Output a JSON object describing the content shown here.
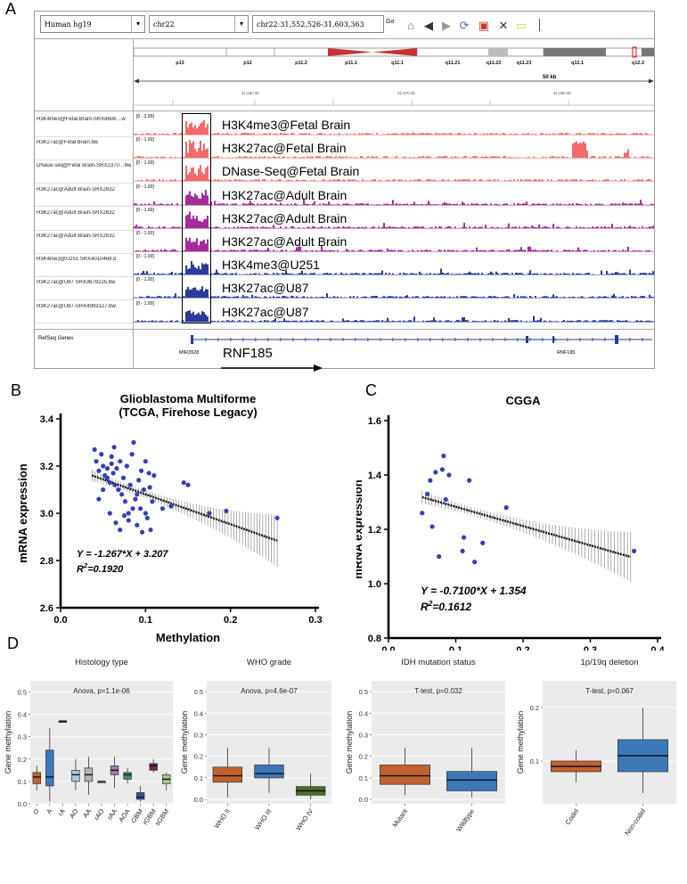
{
  "panels": {
    "a": "A",
    "b": "B",
    "c": "C",
    "d": "D"
  },
  "igv": {
    "genome": "Human hg19",
    "chromosome": "chr22",
    "locus": "chr22:31,552,526-31,603,363",
    "go": "Go",
    "bands": [
      "p13",
      "p12",
      "p11.2",
      "p11.1",
      "q11.1",
      "q11.21",
      "q11.22",
      "q11.23",
      "q12.1",
      "q12.2"
    ],
    "span": "50 kb",
    "ruler": [
      "31,560 kb",
      "31,570 kb",
      "31,580 kb"
    ],
    "tracks": [
      {
        "file": "H3K4me3@Fetal Brain-SRX8606…w",
        "label": "H3K4me3@Fetal Brain",
        "range": "[0 - 2.00]",
        "color": "#f26a6a"
      },
      {
        "file": "H3K27ac@Fetal Brain.bw",
        "label": "H3K27ac@Fetal Brain",
        "range": "[0 - 1.00]",
        "color": "#f26a6a"
      },
      {
        "file": "DNase-seq@Fetal Brain-SRX2370…bw",
        "label": "DNase-Seq@Fetal Brain",
        "range": "[0 - 1.00]",
        "color": "#f26a6a"
      },
      {
        "file": "H3K27ac@Adult Brain-SRX2632",
        "label": "H3K27ac@Adult Brain",
        "range": "[0 - 1.00]",
        "color": "#a52d9a"
      },
      {
        "file": "H3K27ac@Adult Brain-SRX2632",
        "label": "H3K27ac@Adult Brain",
        "range": "[0 - 1.00]",
        "color": "#a52d9a"
      },
      {
        "file": "H3K27ac@Adult Brain-SRX2632",
        "label": "H3K27ac@Adult Brain",
        "range": "[0 - 1.00]",
        "color": "#a52d9a"
      },
      {
        "file": "H3K4me3@U251 SRX4010468.b",
        "label": "H3K4me3@U251",
        "range": "[0 - 1.00]",
        "color": "#2b3a9c"
      },
      {
        "file": "H3K27ac@U87 SRX3678225.bw",
        "label": "H3K27ac@U87",
        "range": "[0 - 1.00]",
        "color": "#2b3a9c"
      },
      {
        "file": "H3K27ac@U87-SRX4993127.bw",
        "label": "H3K27ac@U87",
        "range": "[0 - 1.00]",
        "color": "#2b3a9c"
      }
    ],
    "refseq_label": "RefSeq Genes",
    "gene_left": "MIR3928",
    "gene_right": "RNF185",
    "gene_big": "RNF185"
  },
  "chart_data": [
    {
      "id": "B",
      "type": "scatter",
      "title": "Glioblastoma Multiforme",
      "subtitle": "(TCGA, Firehose Legacy)",
      "xlabel": "Methylation",
      "ylabel": "mRNA expression",
      "xlim": [
        0,
        0.3
      ],
      "ylim": [
        2.6,
        3.4
      ],
      "xticks": [
        "0.0",
        "0.1",
        "0.2",
        "0.3"
      ],
      "yticks": [
        "2.6",
        "2.8",
        "3.0",
        "3.2",
        "3.4"
      ],
      "equation": "Y = -1.267*X + 3.207",
      "r2_label": "R",
      "r2_value": "2",
      "r2_rest": "=0.1920",
      "fit": {
        "slope": -1.267,
        "intercept": 3.207,
        "x0": 0.037,
        "x1": 0.255
      },
      "points": [
        [
          0.04,
          3.27
        ],
        [
          0.042,
          3.22
        ],
        [
          0.045,
          3.18
        ],
        [
          0.048,
          3.25
        ],
        [
          0.05,
          3.2
        ],
        [
          0.052,
          3.16
        ],
        [
          0.055,
          3.15
        ],
        [
          0.058,
          3.13
        ],
        [
          0.06,
          3.24
        ],
        [
          0.062,
          3.17
        ],
        [
          0.064,
          3.12
        ],
        [
          0.066,
          3.19
        ],
        [
          0.068,
          3.1
        ],
        [
          0.07,
          3.22
        ],
        [
          0.072,
          3.08
        ],
        [
          0.074,
          3.15
        ],
        [
          0.076,
          3.05
        ],
        [
          0.078,
          3.2
        ],
        [
          0.08,
          3.0
        ],
        [
          0.082,
          3.12
        ],
        [
          0.084,
          3.25
        ],
        [
          0.086,
          3.3
        ],
        [
          0.088,
          3.06
        ],
        [
          0.09,
          2.95
        ],
        [
          0.092,
          3.14
        ],
        [
          0.094,
          3.02
        ],
        [
          0.096,
          2.92
        ],
        [
          0.098,
          3.1
        ],
        [
          0.1,
          3.0
        ],
        [
          0.102,
          2.98
        ],
        [
          0.104,
          3.17
        ],
        [
          0.106,
          2.93
        ],
        [
          0.108,
          3.05
        ],
        [
          0.11,
          3.16
        ],
        [
          0.065,
          2.96
        ],
        [
          0.07,
          2.93
        ],
        [
          0.075,
          2.99
        ],
        [
          0.08,
          2.97
        ],
        [
          0.085,
          3.02
        ],
        [
          0.09,
          3.08
        ],
        [
          0.095,
          3.18
        ],
        [
          0.1,
          3.22
        ],
        [
          0.105,
          3.11
        ],
        [
          0.045,
          3.06
        ],
        [
          0.05,
          3.1
        ],
        [
          0.055,
          3.19
        ],
        [
          0.06,
          3.21
        ],
        [
          0.063,
          3.28
        ],
        [
          0.058,
          3.0
        ],
        [
          0.12,
          3.02
        ],
        [
          0.13,
          3.03
        ],
        [
          0.145,
          3.13
        ],
        [
          0.15,
          3.12
        ],
        [
          0.255,
          2.98
        ],
        [
          0.195,
          3.01
        ],
        [
          0.175,
          3.0
        ]
      ]
    },
    {
      "id": "C",
      "type": "scatter",
      "title": "CGGA",
      "xlabel": "Methylation",
      "ylabel": "mRNA expression",
      "xlim": [
        0,
        0.4
      ],
      "ylim": [
        0.8,
        1.6
      ],
      "xticks": [
        "0.0",
        "0.1",
        "0.2",
        "0.3",
        "0.4"
      ],
      "yticks": [
        "0.8",
        "1.0",
        "1.2",
        "1.4",
        "1.6"
      ],
      "equation": "Y = -0.7100*X + 1.354",
      "r2_label": "R",
      "r2_value": "2",
      "r2_rest": "=0.1612",
      "fit": {
        "slope": -0.71,
        "intercept": 1.354,
        "x0": 0.05,
        "x1": 0.36
      },
      "points": [
        [
          0.05,
          1.26
        ],
        [
          0.058,
          1.33
        ],
        [
          0.062,
          1.38
        ],
        [
          0.065,
          1.21
        ],
        [
          0.07,
          1.41
        ],
        [
          0.075,
          1.1
        ],
        [
          0.08,
          1.42
        ],
        [
          0.082,
          1.47
        ],
        [
          0.085,
          1.31
        ],
        [
          0.09,
          1.4
        ],
        [
          0.11,
          1.12
        ],
        [
          0.112,
          1.17
        ],
        [
          0.12,
          1.38
        ],
        [
          0.128,
          1.08
        ],
        [
          0.14,
          1.15
        ],
        [
          0.175,
          1.28
        ],
        [
          0.365,
          1.12
        ]
      ]
    },
    {
      "id": "D1",
      "type": "box",
      "title": "Histology type",
      "annotation": "Anova, p=1.1e-06",
      "ylabel": "Gene methylation",
      "ylim": [
        0,
        0.55
      ],
      "yticks": [
        "0.0",
        "0.1",
        "0.2",
        "0.3",
        "0.4",
        "0.5"
      ],
      "categories": [
        "O",
        "A",
        "rA",
        "AO",
        "AA",
        "rAO",
        "rAA",
        "AOA",
        "GBM",
        "rGBM",
        "sGBM"
      ],
      "boxes": [
        {
          "lo": 0.06,
          "q1": 0.09,
          "med": 0.12,
          "q3": 0.14,
          "hi": 0.17,
          "color": "#c0622f"
        },
        {
          "lo": 0.01,
          "q1": 0.08,
          "med": 0.12,
          "q3": 0.24,
          "hi": 0.34,
          "color": "#3d79b8"
        },
        {
          "lo": 0.37,
          "q1": 0.37,
          "med": 0.37,
          "q3": 0.37,
          "hi": 0.37,
          "color": "#4d6b2b"
        },
        {
          "lo": 0.06,
          "q1": 0.1,
          "med": 0.13,
          "q3": 0.15,
          "hi": 0.2,
          "color": "#a9c6df"
        },
        {
          "lo": 0.04,
          "q1": 0.1,
          "med": 0.13,
          "q3": 0.16,
          "hi": 0.21,
          "color": "#b3b3b3"
        },
        {
          "lo": 0.1,
          "q1": 0.1,
          "med": 0.1,
          "q3": 0.1,
          "hi": 0.1,
          "color": "#e3b24b"
        },
        {
          "lo": 0.07,
          "q1": 0.13,
          "med": 0.15,
          "q3": 0.17,
          "hi": 0.21,
          "color": "#a977b6"
        },
        {
          "lo": 0.09,
          "q1": 0.11,
          "med": 0.13,
          "q3": 0.14,
          "hi": 0.16,
          "color": "#3e8c7c"
        },
        {
          "lo": 0.01,
          "q1": 0.02,
          "med": 0.03,
          "q3": 0.05,
          "hi": 0.08,
          "color": "#3c4da0"
        },
        {
          "lo": 0.14,
          "q1": 0.15,
          "med": 0.17,
          "q3": 0.18,
          "hi": 0.2,
          "color": "#6b2b62"
        },
        {
          "lo": 0.06,
          "q1": 0.09,
          "med": 0.11,
          "q3": 0.13,
          "hi": 0.14,
          "color": "#a8c48c"
        }
      ]
    },
    {
      "id": "D2",
      "type": "box",
      "title": "WHO grade",
      "annotation": "Anova, p=4.6e-07",
      "ylabel": "Gene methylation",
      "ylim": [
        -0.02,
        0.55
      ],
      "yticks": [
        "0.0",
        "0.1",
        "0.2",
        "0.3",
        "0.4",
        "0.5"
      ],
      "categories": [
        "WHO II",
        "WHO III",
        "WHO IV"
      ],
      "boxes": [
        {
          "lo": 0.01,
          "q1": 0.08,
          "med": 0.11,
          "q3": 0.15,
          "hi": 0.24,
          "color": "#c0622f"
        },
        {
          "lo": 0.03,
          "q1": 0.1,
          "med": 0.12,
          "q3": 0.16,
          "hi": 0.24,
          "color": "#3d79b8"
        },
        {
          "lo": 0.0,
          "q1": 0.02,
          "med": 0.04,
          "q3": 0.06,
          "hi": 0.12,
          "color": "#4d6b2b"
        }
      ]
    },
    {
      "id": "D3",
      "type": "box",
      "title": "IDH mutation status",
      "annotation": "T-test, p=0.032",
      "ylabel": "Gene methylation",
      "ylim": [
        -0.02,
        0.55
      ],
      "yticks": [
        "0.0",
        "0.1",
        "0.2",
        "0.3",
        "0.4",
        "0.5"
      ],
      "categories": [
        "Mutant",
        "Wildtype"
      ],
      "boxes": [
        {
          "lo": 0.02,
          "q1": 0.07,
          "med": 0.11,
          "q3": 0.16,
          "hi": 0.24,
          "color": "#c0622f"
        },
        {
          "lo": 0.01,
          "q1": 0.04,
          "med": 0.09,
          "q3": 0.13,
          "hi": 0.24,
          "color": "#3d79b8"
        }
      ]
    },
    {
      "id": "D4",
      "type": "box",
      "title": "1p/19q deletion",
      "annotation": "T-test, p=0.067",
      "ylabel": "Gene methylation",
      "ylim": [
        0.02,
        0.25
      ],
      "yticks": [
        "0.1",
        "0.2"
      ],
      "categories": [
        "Codel",
        "Non-codel"
      ],
      "boxes": [
        {
          "lo": 0.06,
          "q1": 0.08,
          "med": 0.09,
          "q3": 0.1,
          "hi": 0.12,
          "color": "#c0622f"
        },
        {
          "lo": 0.04,
          "q1": 0.08,
          "med": 0.11,
          "q3": 0.14,
          "hi": 0.2,
          "color": "#3d79b8"
        }
      ]
    }
  ]
}
